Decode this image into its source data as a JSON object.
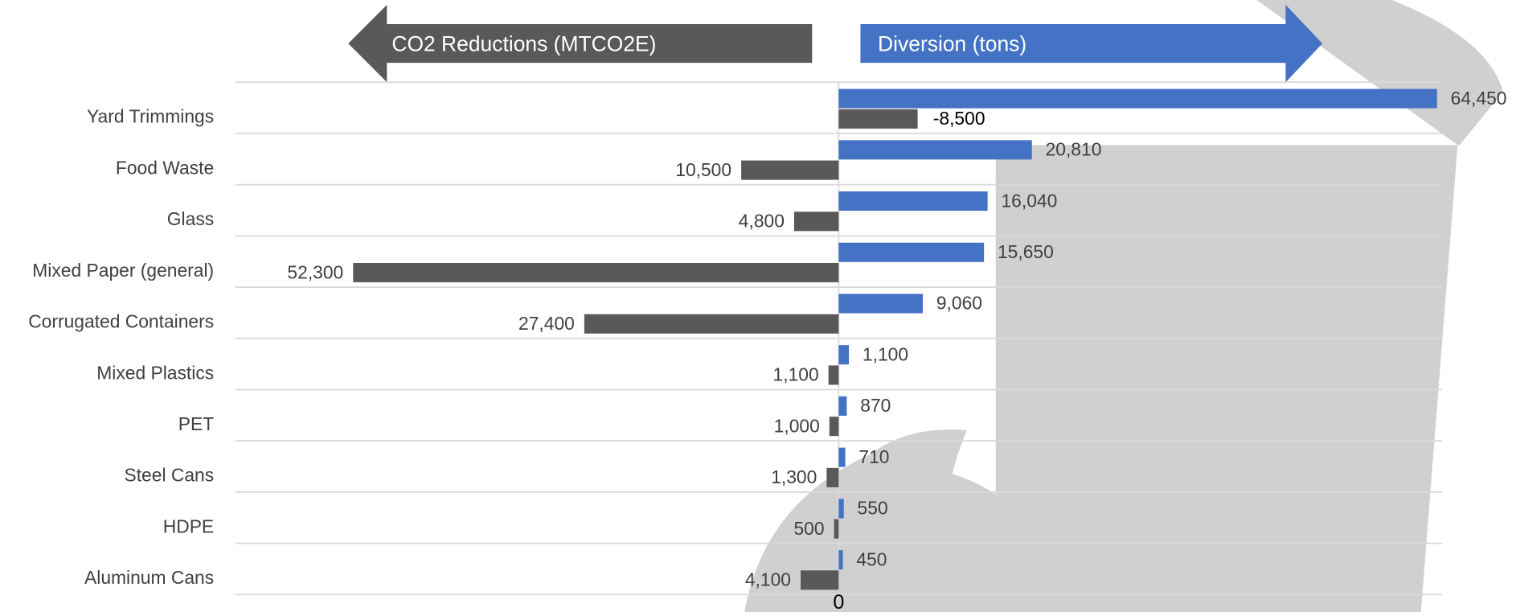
{
  "chart_data": {
    "type": "diverging-bar",
    "categories": [
      "Yard Trimmings",
      "Food Waste",
      "Glass",
      "Mixed Paper (general)",
      "Corrugated Containers",
      "Mixed Plastics",
      "PET",
      "Steel Cans",
      "HDPE",
      "Aluminum Cans"
    ],
    "series": [
      {
        "name": "Diversion (tons)",
        "color": "#4472c4",
        "values": [
          64450,
          20810,
          16040,
          15650,
          9060,
          1100,
          870,
          710,
          550,
          450
        ],
        "value_labels": [
          "64,450",
          "20,810",
          "16,040",
          "15,650",
          "9,060",
          "1,100",
          "870",
          "710",
          "550",
          "450"
        ]
      },
      {
        "name": "CO2 Reductions (MTCO2E)",
        "color": "#595959",
        "values": [
          8500,
          -10500,
          -4800,
          -52300,
          -27400,
          -1100,
          -1000,
          -1300,
          -500,
          -4100
        ],
        "value_labels": [
          "-8,500",
          "10,500",
          "4,800",
          "52,300",
          "27,400",
          "1,100",
          "1,000",
          "1,300",
          "500",
          "4,100"
        ]
      }
    ],
    "xlim": [
      -65000,
      65000
    ],
    "xticks": [
      0
    ],
    "grid": true
  }
}
